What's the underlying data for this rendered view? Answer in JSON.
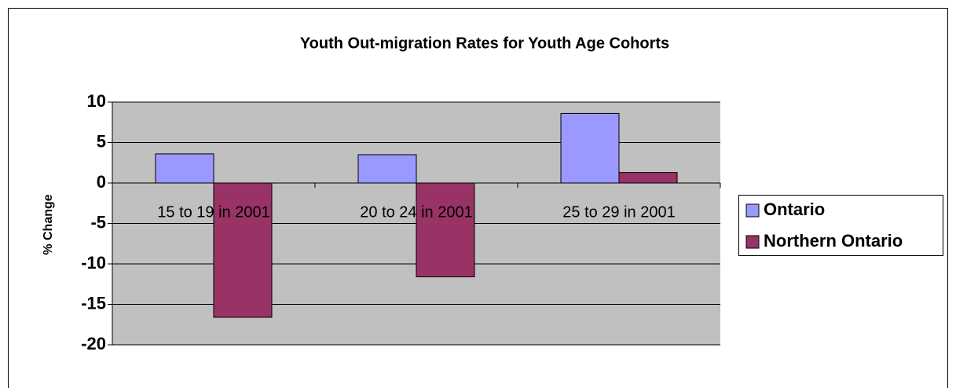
{
  "chart_data": {
    "type": "bar",
    "title": "Youth Out-migration Rates for Youth Age Cohorts",
    "y_label": "% Change",
    "categories": [
      "15 to 19 in 2001",
      "20 to 24 in 2001",
      "25 to 29 in 2001"
    ],
    "series": [
      {
        "name": "Ontario",
        "color": "#9999ff",
        "values": [
          3.6,
          3.5,
          8.6
        ]
      },
      {
        "name": "Northern Ontario",
        "color": "#993366",
        "values": [
          -16.6,
          -11.6,
          1.3
        ]
      }
    ],
    "ylim": [
      -20,
      10
    ],
    "yticks": [
      -20,
      -15,
      -10,
      -5,
      0,
      5,
      10
    ],
    "grid": true,
    "plot_background": "#c0c0c0",
    "legend": "right"
  }
}
